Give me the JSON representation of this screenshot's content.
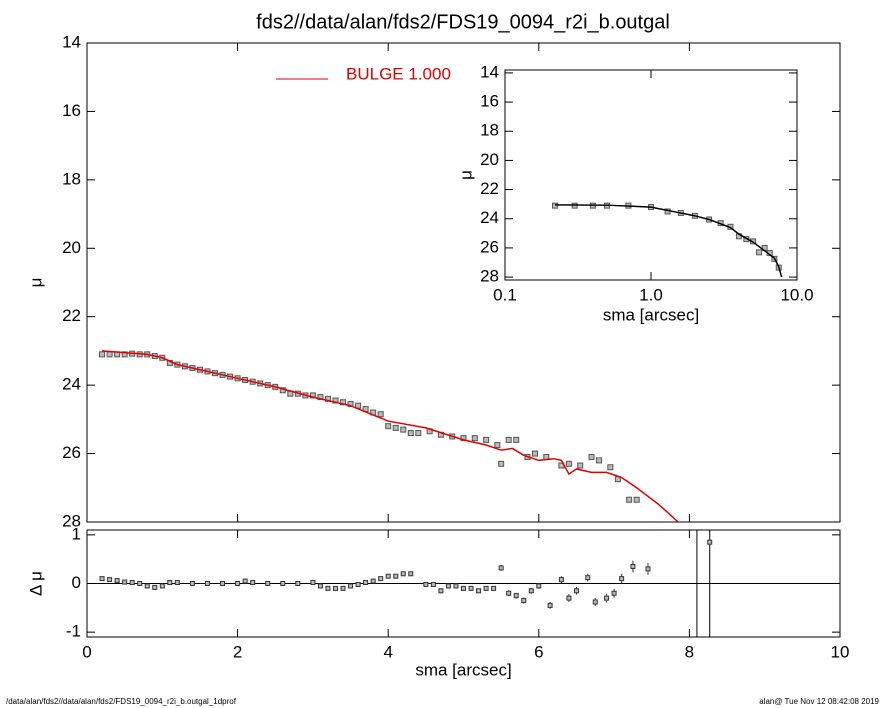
{
  "chart_data": [
    {
      "type": "scatter",
      "title": "fds2//data/alan/fds2/FDS19_0094_r2i_b.outgal",
      "ylabel": "μ",
      "ylim": [
        28,
        14
      ],
      "yticks": [
        14,
        16,
        18,
        20,
        22,
        24,
        26,
        28
      ],
      "points": {
        "color": "#555555",
        "x": [
          0.2,
          0.3,
          0.4,
          0.5,
          0.6,
          0.7,
          0.8,
          0.9,
          1.0,
          1.1,
          1.2,
          1.3,
          1.4,
          1.5,
          1.6,
          1.7,
          1.8,
          1.9,
          2.0,
          2.1,
          2.2,
          2.3,
          2.4,
          2.5,
          2.6,
          2.7,
          2.8,
          2.9,
          3.0,
          3.1,
          3.2,
          3.3,
          3.4,
          3.5,
          3.6,
          3.7,
          3.8,
          3.9,
          4.0,
          4.1,
          4.2,
          4.3,
          4.4,
          4.55,
          4.7,
          4.85,
          5.0,
          5.15,
          5.3,
          5.45,
          5.5,
          5.6,
          5.7,
          5.85,
          5.95,
          6.1,
          6.3,
          6.4,
          6.55,
          6.7,
          6.8,
          6.95,
          7.05,
          7.2,
          7.3
        ],
        "values": [
          23.1,
          23.1,
          23.1,
          23.1,
          23.08,
          23.1,
          23.1,
          23.15,
          23.2,
          23.35,
          23.4,
          23.45,
          23.5,
          23.55,
          23.6,
          23.65,
          23.7,
          23.75,
          23.8,
          23.85,
          23.9,
          23.95,
          24.0,
          24.05,
          24.15,
          24.25,
          24.25,
          24.3,
          24.3,
          24.35,
          24.4,
          24.45,
          24.5,
          24.55,
          24.6,
          24.7,
          24.8,
          24.85,
          25.2,
          25.25,
          25.3,
          25.4,
          25.4,
          25.35,
          25.45,
          25.5,
          25.55,
          25.55,
          25.6,
          25.75,
          26.3,
          25.6,
          25.6,
          26.1,
          26.0,
          26.1,
          26.35,
          26.3,
          26.35,
          26.1,
          26.2,
          26.4,
          26.75,
          27.35,
          27.35
        ]
      },
      "series": [
        {
          "name": "BULGE  1.000",
          "color": "#e00000",
          "x": [
            0.2,
            0.5,
            0.8,
            1.0,
            1.2,
            1.5,
            2.0,
            2.5,
            3.0,
            3.5,
            4.0,
            4.5,
            5.0,
            5.3,
            5.5,
            5.65,
            5.8,
            6.0,
            6.2,
            6.3,
            6.4,
            6.5,
            6.7,
            6.9,
            7.1,
            7.3,
            7.6,
            7.85
          ],
          "values": [
            23.0,
            23.05,
            23.1,
            23.2,
            23.4,
            23.55,
            23.8,
            24.05,
            24.35,
            24.6,
            25.05,
            25.25,
            25.6,
            25.75,
            25.9,
            25.85,
            26.05,
            26.2,
            26.15,
            26.2,
            26.6,
            26.45,
            26.55,
            26.55,
            26.7,
            27.0,
            27.5,
            28.0
          ]
        }
      ]
    },
    {
      "type": "errorbar",
      "xlabel": "sma [arcsec]",
      "ylabel": "Δ μ",
      "xlim": [
        0,
        10
      ],
      "xticks": [
        0,
        2,
        4,
        6,
        8,
        10
      ],
      "ylim": [
        -1.1,
        1.1
      ],
      "yticks": [
        -1,
        0,
        1
      ],
      "hline": 0,
      "vlines": [
        8.1,
        8.27
      ],
      "x": [
        0.2,
        0.3,
        0.4,
        0.5,
        0.6,
        0.7,
        0.8,
        0.9,
        1.0,
        1.1,
        1.2,
        1.4,
        1.6,
        1.8,
        2.0,
        2.1,
        2.2,
        2.4,
        2.6,
        2.8,
        3.0,
        3.1,
        3.2,
        3.3,
        3.4,
        3.5,
        3.6,
        3.7,
        3.8,
        3.9,
        4.0,
        4.1,
        4.2,
        4.3,
        4.5,
        4.6,
        4.7,
        4.8,
        4.9,
        5.0,
        5.1,
        5.2,
        5.3,
        5.4,
        5.5,
        5.6,
        5.7,
        5.8,
        5.9,
        6.0,
        6.15,
        6.3,
        6.4,
        6.5,
        6.65,
        6.75,
        6.9,
        7.0,
        7.1,
        7.25,
        7.45,
        8.27
      ],
      "values": [
        0.1,
        0.08,
        0.06,
        0.03,
        0.02,
        0,
        -0.05,
        -0.08,
        -0.05,
        0.02,
        0.02,
        0,
        0,
        0,
        0,
        0.05,
        0.02,
        0,
        0,
        0,
        0.02,
        -0.05,
        -0.1,
        -0.1,
        -0.1,
        -0.05,
        -0.02,
        0.02,
        0.05,
        0.1,
        0.15,
        0.15,
        0.2,
        0.2,
        -0.02,
        -0.02,
        -0.15,
        -0.05,
        -0.05,
        -0.1,
        -0.1,
        -0.15,
        -0.1,
        -0.1,
        0.32,
        -0.2,
        -0.25,
        -0.35,
        -0.15,
        -0.05,
        -0.45,
        0.08,
        -0.3,
        -0.15,
        0.12,
        -0.38,
        -0.3,
        -0.2,
        0.1,
        0.35,
        0.3,
        0.85
      ],
      "errors": [
        0.02,
        0.02,
        0.02,
        0.02,
        0.02,
        0.02,
        0.02,
        0.02,
        0.02,
        0.02,
        0.02,
        0.02,
        0.02,
        0.02,
        0.02,
        0.03,
        0.03,
        0.03,
        0.03,
        0.03,
        0.03,
        0.03,
        0.03,
        0.03,
        0.03,
        0.03,
        0.03,
        0.03,
        0.03,
        0.03,
        0.03,
        0.03,
        0.03,
        0.03,
        0.04,
        0.04,
        0.05,
        0.05,
        0.05,
        0.05,
        0.05,
        0.05,
        0.05,
        0.05,
        0.06,
        0.06,
        0.06,
        0.06,
        0.06,
        0.06,
        0.07,
        0.07,
        0.08,
        0.08,
        0.08,
        0.08,
        0.09,
        0.09,
        0.1,
        0.12,
        0.12,
        0.05
      ]
    },
    {
      "type": "scatter",
      "xlabel": "sma [arcsec]",
      "ylabel": "μ",
      "xscale": "log",
      "xlim": [
        0.1,
        10
      ],
      "xticks": [
        {
          "value": 0.1,
          "label": "0.1"
        },
        {
          "value": 1,
          "label": "1.0"
        },
        {
          "value": 10,
          "label": "10.0"
        }
      ],
      "ylim": [
        28.2,
        13.8
      ],
      "yticks": [
        14,
        16,
        18,
        20,
        22,
        24,
        26,
        28
      ],
      "points": {
        "color": "#555555",
        "x": [
          0.22,
          0.3,
          0.4,
          0.5,
          0.7,
          1.0,
          1.3,
          1.6,
          2.0,
          2.5,
          3.0,
          3.5,
          4.0,
          4.5,
          5.0,
          5.5,
          6.0,
          6.5,
          7.0,
          7.5
        ],
        "values": [
          23.1,
          23.1,
          23.1,
          23.1,
          23.1,
          23.2,
          23.5,
          23.6,
          23.8,
          24.05,
          24.3,
          24.55,
          25.2,
          25.4,
          25.55,
          26.3,
          26.0,
          26.35,
          26.75,
          27.35
        ]
      },
      "series": [
        {
          "color": "#000000",
          "x": [
            0.22,
            0.5,
            1.0,
            1.5,
            2.0,
            2.5,
            3.0,
            3.5,
            4.0,
            5.0,
            6.0,
            7.0,
            7.5,
            7.85
          ],
          "values": [
            23.05,
            23.07,
            23.2,
            23.55,
            23.8,
            24.05,
            24.35,
            24.6,
            25.05,
            25.6,
            26.2,
            26.7,
            27.3,
            28.0
          ]
        }
      ]
    }
  ],
  "footer": {
    "left": "/data/alan/fds2//data/alan/fds2/FDS19_0094_r2i_b.outgal_1dprof",
    "right": "alan@  Tue Nov 12 08:42:08 2019"
  }
}
